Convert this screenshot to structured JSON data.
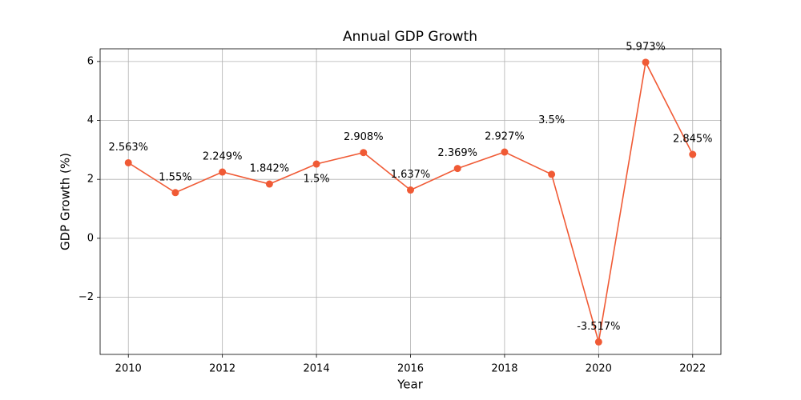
{
  "chart_data": {
    "type": "line",
    "title": "Annual GDP Growth",
    "x_label": "Year",
    "y_label": "GDP Growth (%)",
    "x": [
      2010,
      2011,
      2012,
      2013,
      2014,
      2015,
      2016,
      2017,
      2018,
      2019,
      2020,
      2021,
      2022
    ],
    "series": [
      {
        "name": "GDP Growth",
        "color": "#f05a35",
        "values": [
          2.563,
          1.55,
          2.249,
          1.842,
          2.52,
          2.908,
          1.637,
          2.369,
          2.927,
          2.17,
          -3.517,
          5.973,
          2.845
        ],
        "value_labels": [
          "2.563%",
          "1.55%",
          "2.249%",
          "1.842%",
          null,
          "2.908%",
          "1.637%",
          "2.369%",
          "2.927%",
          null,
          "-3.517%",
          "5.973%",
          "2.845%"
        ]
      }
    ],
    "annotations": [
      {
        "x": 2014,
        "y": 2.0,
        "text": "1.5%"
      },
      {
        "x": 2019,
        "y": 4.0,
        "text": "3.5%"
      }
    ],
    "xlim": [
      2009.4,
      2022.6
    ],
    "xticks": [
      2010,
      2012,
      2014,
      2016,
      2018,
      2020,
      2022
    ],
    "ylim": [
      -3.94,
      6.43
    ],
    "yticks": [
      {
        "value": -2,
        "label": "−2"
      },
      0,
      2,
      4,
      6
    ],
    "grid": true
  }
}
